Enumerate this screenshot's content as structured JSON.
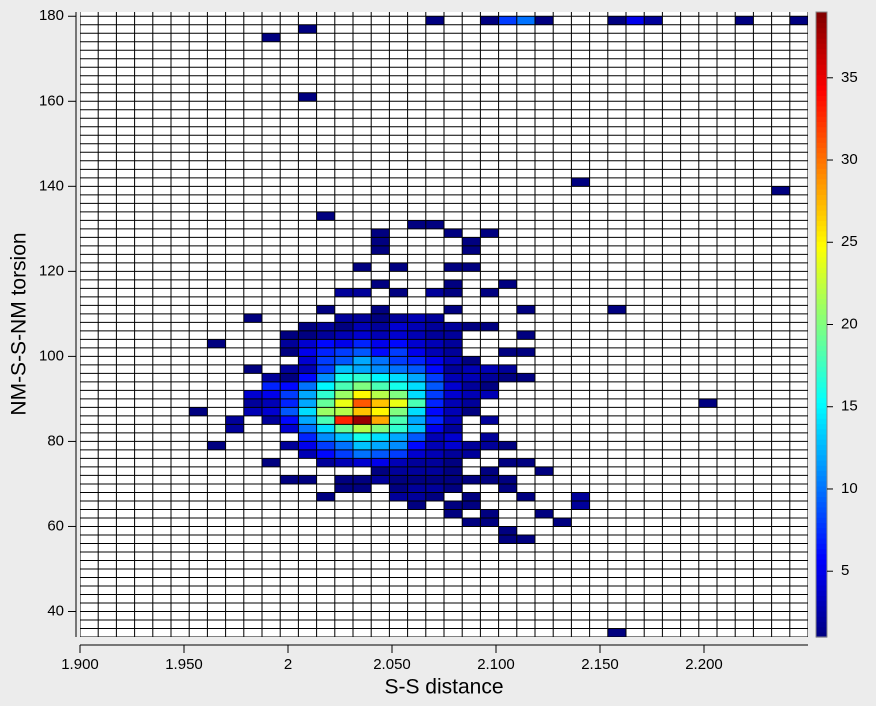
{
  "chart_data": {
    "type": "heatmap",
    "x_label": "S-S distance",
    "y_label": "NM-S-S-NM torsion",
    "xlim": [
      1.9,
      2.25
    ],
    "ylim": [
      34,
      181
    ],
    "xbin_width": 0.00875,
    "ybin_height": 2,
    "xticks": [
      {
        "value": 1.9,
        "label": "1.900"
      },
      {
        "value": 1.95,
        "label": "1.950"
      },
      2,
      {
        "value": 2.05,
        "label": "2.050"
      },
      {
        "value": 2.1,
        "label": "2.100"
      },
      {
        "value": 2.15,
        "label": "2.150"
      },
      {
        "value": 2.2,
        "label": "2.200"
      }
    ],
    "yticks": [
      40,
      60,
      80,
      100,
      120,
      140,
      160,
      180
    ],
    "zlim": [
      1,
      39
    ],
    "zticks": [
      5,
      10,
      15,
      20,
      25,
      30,
      35
    ],
    "colormap": "jet",
    "rows": [
      {
        "y": 178,
        "x": [
          2.06625,
          2.0925,
          2.10125,
          2.11,
          2.11875,
          2.15375,
          2.1625,
          2.17125,
          2.215,
          2.24125
        ],
        "values": [
          1,
          1,
          8,
          10,
          1,
          1,
          5,
          2,
          1,
          1
        ]
      },
      {
        "y": 176,
        "x": [
          2.005
        ],
        "values": [
          1
        ]
      },
      {
        "y": 174,
        "x": [
          1.9875
        ],
        "values": [
          1
        ]
      },
      {
        "y": 160,
        "x": [
          2.005
        ],
        "values": [
          1
        ]
      },
      {
        "y": 140,
        "x": [
          2.13625
        ],
        "values": [
          1
        ]
      },
      {
        "y": 138,
        "x": [
          2.2325
        ],
        "values": [
          1
        ]
      },
      {
        "y": 132,
        "x": [
          2.01375
        ],
        "values": [
          1
        ]
      },
      {
        "y": 130,
        "x": [
          2.0575,
          2.06625
        ],
        "values": [
          1,
          1
        ]
      },
      {
        "y": 128,
        "x": [
          2.04,
          2.075,
          2.0925
        ],
        "values": [
          1,
          1,
          1
        ]
      },
      {
        "y": 126,
        "x": [
          2.04,
          2.08375
        ],
        "values": [
          1,
          1
        ]
      },
      {
        "y": 124,
        "x": [
          2.04,
          2.08375
        ],
        "values": [
          1,
          1
        ]
      },
      {
        "y": 120,
        "x": [
          2.03125,
          2.04875,
          2.075,
          2.08375
        ],
        "values": [
          1,
          1,
          1,
          1
        ]
      },
      {
        "y": 116,
        "x": [
          2.04,
          2.075,
          2.10125
        ],
        "values": [
          1,
          1,
          1
        ]
      },
      {
        "y": 114,
        "x": [
          2.0225,
          2.03125,
          2.04875,
          2.06625,
          2.075,
          2.0925
        ],
        "values": [
          2,
          2,
          1,
          2,
          1,
          1
        ]
      },
      {
        "y": 110,
        "x": [
          2.01375,
          2.04,
          2.075,
          2.11,
          2.15375
        ],
        "values": [
          1,
          1,
          1,
          1,
          1
        ]
      },
      {
        "y": 108,
        "x": [
          1.97875,
          2.0225,
          2.03125,
          2.04,
          2.04875,
          2.0575,
          2.06625
        ],
        "values": [
          1,
          2,
          2,
          1,
          2,
          3,
          2
        ]
      },
      {
        "y": 106,
        "x": [
          2.005,
          2.01375,
          2.0225,
          2.03125,
          2.04,
          2.04875,
          2.0575,
          2.06625,
          2.075,
          2.08375,
          2.0925
        ],
        "values": [
          1,
          2,
          1,
          3,
          2,
          4,
          3,
          2,
          2,
          1,
          1
        ]
      },
      {
        "y": 104,
        "x": [
          1.99625,
          2.005,
          2.01375,
          2.0225,
          2.03125,
          2.04,
          2.04875,
          2.0575,
          2.06625,
          2.075,
          2.11
        ],
        "values": [
          1,
          1,
          2,
          3,
          4,
          3,
          4,
          3,
          2,
          2,
          1
        ]
      },
      {
        "y": 102,
        "x": [
          1.96125,
          1.99625,
          2.005,
          2.01375,
          2.0225,
          2.03125,
          2.04,
          2.04875,
          2.0575,
          2.06625,
          2.075
        ],
        "values": [
          1,
          2,
          4,
          6,
          5,
          7,
          5,
          6,
          4,
          3,
          2
        ]
      },
      {
        "y": 100,
        "x": [
          1.99625,
          2.005,
          2.01375,
          2.0225,
          2.03125,
          2.04,
          2.04875,
          2.0575,
          2.06625,
          2.075,
          2.10125,
          2.11
        ],
        "values": [
          1,
          5,
          7,
          8,
          9,
          6,
          8,
          5,
          3,
          2,
          1,
          1
        ]
      },
      {
        "y": 98,
        "x": [
          2.005,
          2.01375,
          2.0225,
          2.03125,
          2.04,
          2.04875,
          2.0575,
          2.06625,
          2.075,
          2.08375
        ],
        "values": [
          4,
          8,
          9,
          12,
          10,
          8,
          7,
          5,
          3,
          1
        ]
      },
      {
        "y": 96,
        "x": [
          1.97875,
          1.99625,
          2.005,
          2.01375,
          2.0225,
          2.03125,
          2.04,
          2.04875,
          2.0575,
          2.06625,
          2.075,
          2.08375,
          2.0925,
          2.10125
        ],
        "values": [
          1,
          2,
          3,
          8,
          13,
          12,
          11,
          10,
          9,
          6,
          2,
          3,
          3,
          2
        ]
      },
      {
        "y": 94,
        "x": [
          1.9875,
          1.99625,
          2.005,
          2.01375,
          2.0225,
          2.03125,
          2.04,
          2.04875,
          2.0575,
          2.06625,
          2.075,
          2.08375,
          2.0925,
          2.10125,
          2.11
        ],
        "values": [
          2,
          1,
          6,
          11,
          16,
          17,
          15,
          14,
          12,
          8,
          3,
          3,
          2,
          1,
          1
        ]
      },
      {
        "y": 92,
        "x": [
          1.9875,
          1.99625,
          2.005,
          2.01375,
          2.0225,
          2.03125,
          2.04,
          2.04875,
          2.0575,
          2.06625,
          2.075,
          2.08375,
          2.0925
        ],
        "values": [
          7,
          6,
          10,
          15,
          18,
          20,
          18,
          16,
          14,
          9,
          4,
          2,
          1
        ]
      },
      {
        "y": 90,
        "x": [
          1.97875,
          1.9875,
          1.99625,
          2.005,
          2.01375,
          2.0225,
          2.03125,
          2.04,
          2.04875,
          2.0575,
          2.06625,
          2.075,
          2.08375,
          2.0925
        ],
        "values": [
          4,
          5,
          8,
          12,
          17,
          21,
          25,
          22,
          20,
          14,
          8,
          4,
          3,
          3
        ]
      },
      {
        "y": 88,
        "x": [
          1.97875,
          1.9875,
          1.99625,
          2.005,
          2.01375,
          2.0225,
          2.03125,
          2.04,
          2.04875,
          2.0575,
          2.06625,
          2.075,
          2.08375,
          2.1975
        ],
        "values": [
          2,
          3,
          7,
          12,
          19,
          24,
          31,
          27,
          24,
          18,
          7,
          3,
          2,
          1
        ]
      },
      {
        "y": 86,
        "x": [
          1.9525,
          1.97875,
          1.9875,
          1.99625,
          2.005,
          2.01375,
          2.0225,
          2.03125,
          2.04,
          2.04875,
          2.0575,
          2.06625,
          2.075,
          2.08375
        ],
        "values": [
          1,
          3,
          4,
          9,
          14,
          21,
          22,
          27,
          25,
          20,
          14,
          6,
          3,
          1
        ]
      },
      {
        "y": 84,
        "x": [
          1.97,
          1.9875,
          1.99625,
          2.005,
          2.01375,
          2.0225,
          2.03125,
          2.04,
          2.04875,
          2.0575,
          2.06625,
          2.075,
          2.0925
        ],
        "values": [
          2,
          2,
          6,
          12,
          18,
          33,
          38,
          28,
          18,
          12,
          7,
          3,
          2
        ]
      },
      {
        "y": 82,
        "x": [
          1.97,
          1.99625,
          2.005,
          2.01375,
          2.0225,
          2.03125,
          2.04,
          2.04875,
          2.0575,
          2.06625,
          2.075
        ],
        "values": [
          2,
          4,
          10,
          14,
          19,
          22,
          20,
          17,
          13,
          5,
          2
        ]
      },
      {
        "y": 80,
        "x": [
          2.005,
          2.01375,
          2.0225,
          2.03125,
          2.04,
          2.04875,
          2.0575,
          2.06625,
          2.075,
          2.0925
        ],
        "values": [
          7,
          11,
          13,
          16,
          14,
          12,
          9,
          3,
          4,
          2
        ]
      },
      {
        "y": 78,
        "x": [
          1.96125,
          1.99625,
          2.005,
          2.01375,
          2.0225,
          2.03125,
          2.04,
          2.04875,
          2.0575,
          2.06625,
          2.075,
          2.08375,
          2.0925,
          2.10125
        ],
        "values": [
          1,
          2,
          5,
          8,
          10,
          13,
          12,
          11,
          6,
          3,
          4,
          2,
          2,
          1
        ]
      },
      {
        "y": 76,
        "x": [
          2.005,
          2.01375,
          2.0225,
          2.03125,
          2.04,
          2.04875,
          2.0575,
          2.06625,
          2.075,
          2.08375
        ],
        "values": [
          3,
          6,
          8,
          10,
          9,
          8,
          4,
          3,
          2,
          2
        ]
      },
      {
        "y": 74,
        "x": [
          1.9875,
          2.01375,
          2.0225,
          2.03125,
          2.04,
          2.04875,
          2.0575,
          2.06625,
          2.075,
          2.10125,
          2.11
        ],
        "values": [
          1,
          2,
          3,
          4,
          5,
          3,
          2,
          2,
          1,
          1,
          1
        ]
      },
      {
        "y": 72,
        "x": [
          2.04,
          2.04875,
          2.0575,
          2.06625,
          2.075,
          2.0925,
          2.11875
        ],
        "values": [
          1,
          2,
          2,
          2,
          1,
          1,
          1
        ]
      },
      {
        "y": 70,
        "x": [
          1.99625,
          2.005,
          2.0225,
          2.03125,
          2.04,
          2.04875,
          2.0575,
          2.06625,
          2.075,
          2.08375,
          2.0925,
          2.10125
        ],
        "values": [
          1,
          1,
          1,
          1,
          2,
          1,
          1,
          1,
          1,
          1,
          1,
          1
        ]
      },
      {
        "y": 68,
        "x": [
          2.0225,
          2.03125,
          2.04875,
          2.0575,
          2.06625,
          2.075,
          2.10125
        ],
        "values": [
          1,
          1,
          1,
          2,
          2,
          1,
          1
        ]
      },
      {
        "y": 66,
        "x": [
          2.01375,
          2.04875,
          2.0575,
          2.06625,
          2.08375,
          2.11,
          2.13625
        ],
        "values": [
          1,
          2,
          2,
          1,
          1,
          1,
          2
        ]
      },
      {
        "y": 64,
        "x": [
          2.0575,
          2.075,
          2.08375,
          2.13625
        ],
        "values": [
          1,
          1,
          1,
          2
        ]
      },
      {
        "y": 62,
        "x": [
          2.075,
          2.0925,
          2.11875
        ],
        "values": [
          1,
          1,
          1
        ]
      },
      {
        "y": 60,
        "x": [
          2.08375,
          2.0925,
          2.1275
        ],
        "values": [
          1,
          1,
          1
        ]
      },
      {
        "y": 58,
        "x": [
          2.10125
        ],
        "values": [
          1
        ]
      },
      {
        "y": 56,
        "x": [
          2.10125,
          2.11
        ],
        "values": [
          1,
          1
        ]
      },
      {
        "y": 34,
        "x": [
          2.15375
        ],
        "values": [
          1
        ]
      }
    ]
  }
}
